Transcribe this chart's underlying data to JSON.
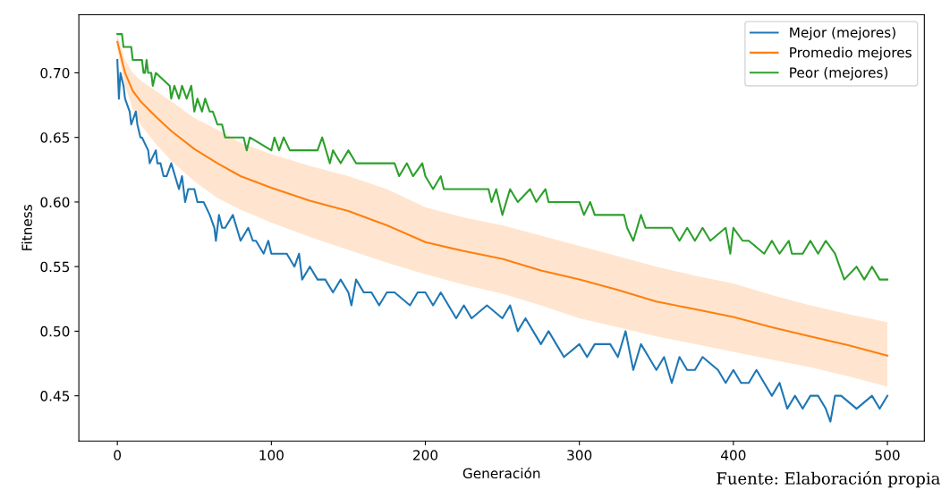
{
  "chart_data": {
    "type": "line",
    "xlabel": "Generación",
    "ylabel": "Fitness",
    "xlim": [
      -25,
      524
    ],
    "ylim": [
      0.415,
      0.745
    ],
    "xticks": [
      0,
      100,
      200,
      300,
      400,
      500
    ],
    "yticks": [
      {
        "value": 0.45,
        "label": "0.45"
      },
      {
        "value": 0.5,
        "label": "0.50"
      },
      {
        "value": 0.55,
        "label": "0.55"
      },
      {
        "value": 0.6,
        "label": "0.60"
      },
      {
        "value": 0.65,
        "label": "0.65"
      },
      {
        "value": 0.7,
        "label": "0.70"
      }
    ],
    "grid": false,
    "legend": "top right",
    "marker": "none",
    "line_style": "solid",
    "annotations": [
      "Fuente: Elaboración propia"
    ],
    "series": [
      {
        "name": "Mejor (mejores)",
        "color": "#1f77b4",
        "x": [
          0,
          1,
          2,
          4,
          5,
          8,
          9,
          12,
          13,
          15,
          16,
          20,
          21,
          25,
          26,
          28,
          30,
          32,
          35,
          40,
          42,
          44,
          46,
          50,
          52,
          56,
          60,
          63,
          64,
          66,
          68,
          70,
          75,
          80,
          85,
          88,
          90,
          95,
          98,
          100,
          110,
          115,
          118,
          120,
          125,
          130,
          135,
          140,
          145,
          150,
          152,
          155,
          160,
          165,
          170,
          175,
          180,
          190,
          195,
          200,
          205,
          210,
          215,
          220,
          225,
          230,
          240,
          250,
          255,
          260,
          265,
          270,
          275,
          280,
          285,
          290,
          300,
          305,
          310,
          320,
          325,
          330,
          335,
          340,
          345,
          350,
          355,
          360,
          365,
          370,
          375,
          380,
          390,
          395,
          400,
          405,
          410,
          415,
          420,
          425,
          430,
          435,
          440,
          445,
          450,
          455,
          460,
          463,
          466,
          470,
          480,
          490,
          495,
          500
        ],
        "values": [
          0.71,
          0.68,
          0.7,
          0.69,
          0.68,
          0.67,
          0.66,
          0.67,
          0.66,
          0.65,
          0.65,
          0.64,
          0.63,
          0.64,
          0.63,
          0.63,
          0.62,
          0.62,
          0.63,
          0.61,
          0.62,
          0.6,
          0.61,
          0.61,
          0.6,
          0.6,
          0.59,
          0.58,
          0.57,
          0.59,
          0.58,
          0.58,
          0.59,
          0.57,
          0.58,
          0.57,
          0.57,
          0.56,
          0.57,
          0.56,
          0.56,
          0.55,
          0.56,
          0.54,
          0.55,
          0.54,
          0.54,
          0.53,
          0.54,
          0.53,
          0.52,
          0.54,
          0.53,
          0.53,
          0.52,
          0.53,
          0.53,
          0.52,
          0.53,
          0.53,
          0.52,
          0.53,
          0.52,
          0.51,
          0.52,
          0.51,
          0.52,
          0.51,
          0.52,
          0.5,
          0.51,
          0.5,
          0.49,
          0.5,
          0.49,
          0.48,
          0.49,
          0.48,
          0.49,
          0.49,
          0.48,
          0.5,
          0.47,
          0.49,
          0.48,
          0.47,
          0.48,
          0.46,
          0.48,
          0.47,
          0.47,
          0.48,
          0.47,
          0.46,
          0.47,
          0.46,
          0.46,
          0.47,
          0.46,
          0.45,
          0.46,
          0.44,
          0.45,
          0.44,
          0.45,
          0.45,
          0.44,
          0.43,
          0.45,
          0.45,
          0.44,
          0.45,
          0.44,
          0.45
        ]
      },
      {
        "name": "Promedio mejores",
        "color": "#ff7f0e",
        "x": [
          0,
          5,
          10,
          15,
          25,
          35,
          50,
          65,
          80,
          100,
          125,
          150,
          175,
          200,
          225,
          250,
          275,
          300,
          325,
          350,
          375,
          400,
          425,
          450,
          475,
          500
        ],
        "values": [
          0.724,
          0.7,
          0.686,
          0.678,
          0.666,
          0.655,
          0.641,
          0.63,
          0.62,
          0.611,
          0.601,
          0.593,
          0.582,
          0.569,
          0.562,
          0.556,
          0.547,
          0.54,
          0.532,
          0.523,
          0.517,
          0.511,
          0.503,
          0.496,
          0.489,
          0.481
        ],
        "lower": [
          0.718,
          0.69,
          0.672,
          0.66,
          0.645,
          0.632,
          0.616,
          0.603,
          0.594,
          0.584,
          0.573,
          0.563,
          0.553,
          0.544,
          0.536,
          0.529,
          0.52,
          0.51,
          0.503,
          0.496,
          0.49,
          0.484,
          0.478,
          0.472,
          0.465,
          0.457
        ],
        "upper": [
          0.73,
          0.71,
          0.7,
          0.694,
          0.686,
          0.678,
          0.665,
          0.656,
          0.646,
          0.637,
          0.628,
          0.62,
          0.61,
          0.596,
          0.588,
          0.582,
          0.574,
          0.566,
          0.558,
          0.55,
          0.543,
          0.537,
          0.528,
          0.52,
          0.513,
          0.507
        ]
      },
      {
        "name": "Peor (mejores)",
        "color": "#2ca02c",
        "x": [
          0,
          3,
          4,
          9,
          10,
          16,
          17,
          18,
          19,
          20,
          22,
          23,
          25,
          34,
          35,
          37,
          40,
          42,
          45,
          48,
          50,
          52,
          55,
          57,
          60,
          62,
          65,
          68,
          70,
          82,
          84,
          86,
          100,
          102,
          105,
          108,
          112,
          115,
          130,
          133,
          138,
          140,
          145,
          150,
          155,
          160,
          180,
          183,
          188,
          192,
          198,
          200,
          205,
          210,
          212,
          220,
          241,
          243,
          246,
          250,
          255,
          260,
          268,
          272,
          278,
          280,
          282,
          300,
          303,
          307,
          310,
          315,
          329,
          331,
          335,
          340,
          343,
          345,
          360,
          365,
          370,
          375,
          380,
          385,
          395,
          398,
          400,
          406,
          410,
          420,
          425,
          430,
          436,
          438,
          445,
          450,
          455,
          460,
          466,
          469,
          472,
          480,
          485,
          490,
          495,
          500
        ],
        "values": [
          0.73,
          0.73,
          0.72,
          0.72,
          0.71,
          0.71,
          0.7,
          0.7,
          0.71,
          0.7,
          0.7,
          0.69,
          0.7,
          0.69,
          0.68,
          0.69,
          0.68,
          0.69,
          0.68,
          0.69,
          0.67,
          0.68,
          0.67,
          0.68,
          0.67,
          0.67,
          0.66,
          0.66,
          0.65,
          0.65,
          0.64,
          0.65,
          0.64,
          0.65,
          0.64,
          0.65,
          0.64,
          0.64,
          0.64,
          0.65,
          0.63,
          0.64,
          0.63,
          0.64,
          0.63,
          0.63,
          0.63,
          0.62,
          0.63,
          0.62,
          0.63,
          0.62,
          0.61,
          0.62,
          0.61,
          0.61,
          0.61,
          0.6,
          0.61,
          0.59,
          0.61,
          0.6,
          0.61,
          0.6,
          0.61,
          0.6,
          0.6,
          0.6,
          0.59,
          0.6,
          0.59,
          0.59,
          0.59,
          0.58,
          0.57,
          0.59,
          0.58,
          0.58,
          0.58,
          0.57,
          0.58,
          0.57,
          0.58,
          0.57,
          0.58,
          0.56,
          0.58,
          0.57,
          0.57,
          0.56,
          0.57,
          0.56,
          0.57,
          0.56,
          0.56,
          0.57,
          0.56,
          0.57,
          0.56,
          0.55,
          0.54,
          0.55,
          0.54,
          0.55,
          0.54,
          0.54
        ]
      }
    ]
  }
}
